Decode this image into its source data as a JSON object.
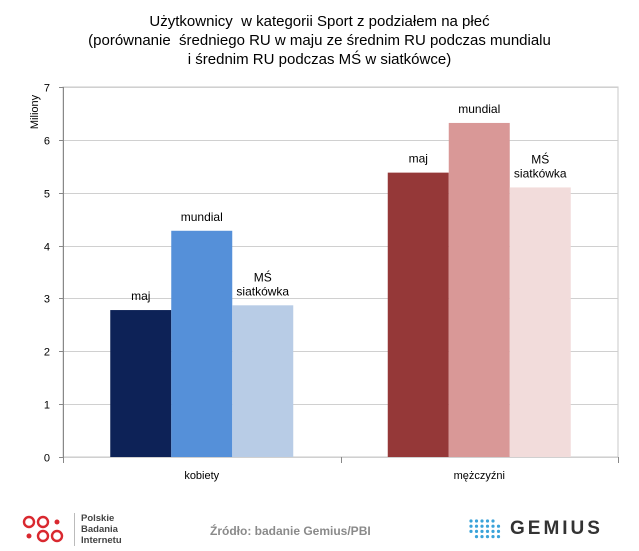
{
  "title": {
    "line1": "Użytkownicy  w kategorii Sport z podziałem na płeć",
    "line2": "(porównanie  średniego RU w maju ze średnim RU podczas mundialu",
    "line3": "i średnim RU podczas MŚ w siatkówce)"
  },
  "chart_data": {
    "type": "bar",
    "categories": [
      "kobiety",
      "mężczyźni"
    ],
    "ylabel": "Miliony",
    "ylim": [
      0,
      7
    ],
    "yticks": [
      0,
      1,
      2,
      3,
      4,
      5,
      6,
      7
    ],
    "grid": true,
    "legend": "none",
    "groups": [
      {
        "category": "kobiety",
        "bars": [
          {
            "label": [
              "maj"
            ],
            "value": 2.78,
            "color": "#0d2257"
          },
          {
            "label": [
              "mundial"
            ],
            "value": 4.28,
            "color": "#5590d9"
          },
          {
            "label": [
              "MŚ",
              "siatkówka"
            ],
            "value": 2.87,
            "color": "#b8cce6"
          }
        ]
      },
      {
        "category": "mężczyźni",
        "bars": [
          {
            "label": [
              "maj"
            ],
            "value": 5.38,
            "color": "#953838"
          },
          {
            "label": [
              "mundial"
            ],
            "value": 6.32,
            "color": "#d99897"
          },
          {
            "label": [
              "MŚ",
              "siatkówka"
            ],
            "value": 5.1,
            "color": "#f2dcdb"
          }
        ]
      }
    ]
  },
  "footer": {
    "source": "Źródło: badanie Gemius/PBI",
    "pbi_lines": [
      "Polskie",
      "Badania",
      "Internetu"
    ],
    "gemius_word": "GEMIUS",
    "pbi_color": "#d9282f",
    "gemius_dots_color": "#3aa3d9"
  }
}
